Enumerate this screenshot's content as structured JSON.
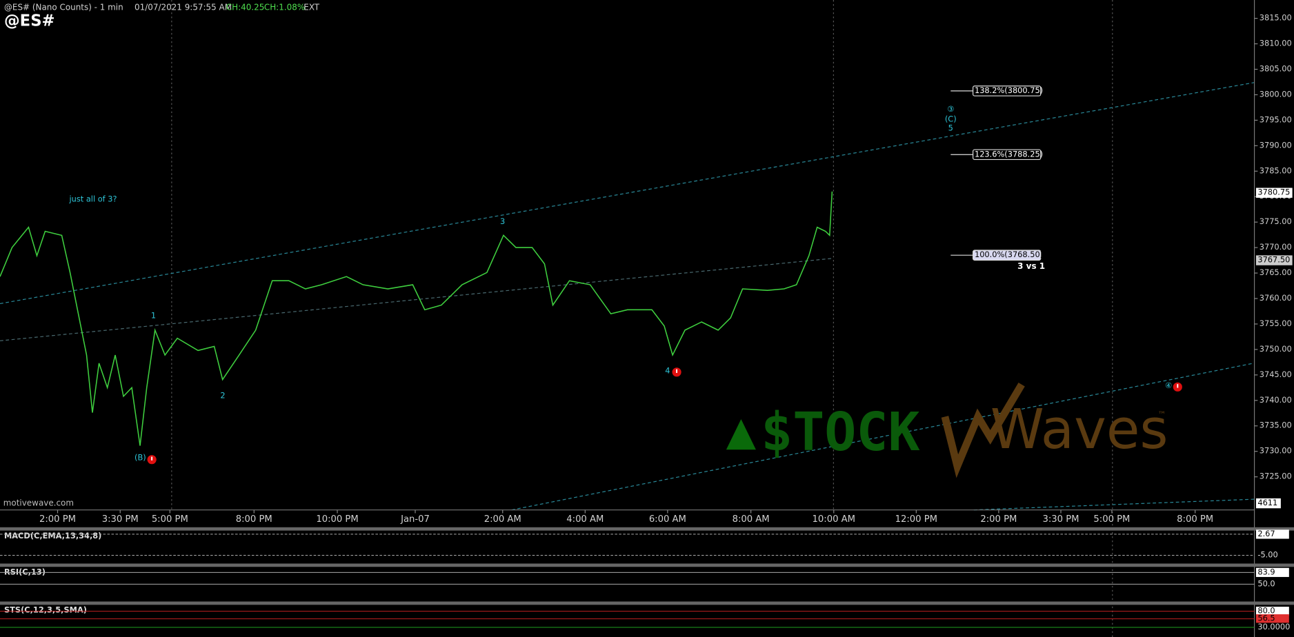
{
  "header": {
    "symbol": "@ES# (Nano Counts) - 1 min",
    "datetime": "01/07/2021 9:57:55 AM",
    "change": "CH:40.25",
    "change_pct": "CH:1.08%",
    "session": "EXT",
    "ticker": "@ES#",
    "site": "motivewave.com",
    "logo_left": "$TOCK",
    "logo_right": "Waves",
    "logo_tm": "™"
  },
  "chart_data": {
    "type": "line",
    "color": "#3fcf3f",
    "x": [
      -1.39,
      -1.1,
      -0.7,
      -0.5,
      -0.3,
      0.1,
      0.3,
      0.5,
      0.7,
      0.84,
      1.0,
      1.2,
      1.39,
      1.59,
      1.79,
      1.99,
      2.15,
      2.35,
      2.59,
      2.89,
      3.39,
      3.78,
      3.98,
      4.38,
      4.78,
      5.18,
      5.58,
      5.98,
      6.37,
      6.97,
      7.37,
      7.97,
      8.57,
      8.86,
      9.26,
      9.76,
      10.36,
      10.76,
      11.06,
      11.45,
      11.75,
      11.95,
      12.35,
      12.85,
      13.35,
      13.75,
      14.34,
      14.64,
      14.84,
      15.14,
      15.54,
      15.94,
      16.24,
      16.53,
      17.13,
      17.53,
      17.83,
      18.13,
      18.33,
      18.53,
      18.63,
      18.69
    ],
    "values": [
      3764.3,
      3770.0,
      3774.0,
      3768.4,
      3773.2,
      3772.4,
      3765.1,
      3757.0,
      3748.9,
      3737.6,
      3747.3,
      3742.5,
      3748.9,
      3740.8,
      3742.5,
      3731.1,
      3742.5,
      3753.8,
      3748.9,
      3752.2,
      3749.8,
      3750.6,
      3744.1,
      3748.9,
      3753.8,
      3763.5,
      3763.5,
      3761.9,
      3762.7,
      3764.3,
      3762.7,
      3761.9,
      3762.7,
      3757.8,
      3758.7,
      3762.7,
      3765.1,
      3772.4,
      3770.0,
      3770.0,
      3766.8,
      3758.7,
      3763.5,
      3762.7,
      3757.0,
      3757.8,
      3757.8,
      3754.6,
      3748.9,
      3753.8,
      3755.4,
      3753.8,
      3756.2,
      3761.9,
      3761.6,
      3761.9,
      3762.7,
      3768.4,
      3774.0,
      3773.2,
      3772.4,
      3781.0
    ],
    "xlim": [
      -1.39,
      28.88
    ],
    "xticks": [
      {
        "value": 0,
        "label": "2:00 PM"
      },
      {
        "value": 1.51,
        "label": "3:30 PM"
      },
      {
        "value": 2.71,
        "label": "5:00 PM"
      },
      {
        "value": 4.74,
        "label": "8:00 PM"
      },
      {
        "value": 6.75,
        "label": "10:00 PM"
      },
      {
        "value": 8.63,
        "label": "Jan-07"
      },
      {
        "value": 10.74,
        "label": "2:00 AM"
      },
      {
        "value": 12.73,
        "label": "4:00 AM"
      },
      {
        "value": 14.72,
        "label": "6:00 AM"
      },
      {
        "value": 16.73,
        "label": "8:00 AM"
      },
      {
        "value": 18.73,
        "label": "10:00 AM"
      },
      {
        "value": 20.72,
        "label": "12:00 PM"
      },
      {
        "value": 22.71,
        "label": "2:00 PM"
      },
      {
        "value": 24.21,
        "label": "3:30 PM"
      },
      {
        "value": 25.44,
        "label": "5:00 PM"
      },
      {
        "value": 27.45,
        "label": "8:00 PM"
      }
    ],
    "ylim": [
      3718.5,
      3818.6
    ],
    "yticks": [
      {
        "value": 3725,
        "label": "3725.00"
      },
      {
        "value": 3730,
        "label": "3730.00"
      },
      {
        "value": 3735,
        "label": "3735.00"
      },
      {
        "value": 3740,
        "label": "3740.00"
      },
      {
        "value": 3745,
        "label": "3745.00"
      },
      {
        "value": 3750,
        "label": "3750.00"
      },
      {
        "value": 3755,
        "label": "3755.00"
      },
      {
        "value": 3760,
        "label": "3760.00"
      },
      {
        "value": 3765,
        "label": "3765.00"
      },
      {
        "value": 3770,
        "label": "3770.00"
      },
      {
        "value": 3775,
        "label": "3775.00"
      },
      {
        "value": 3780,
        "label": "3780.00"
      },
      {
        "value": 3785,
        "label": "3785.00"
      },
      {
        "value": 3790,
        "label": "3790.00"
      },
      {
        "value": 3795,
        "label": "3795.00"
      },
      {
        "value": 3800,
        "label": "3800.00"
      },
      {
        "value": 3805,
        "label": "3805.00"
      },
      {
        "value": 3810,
        "label": "3810.00"
      },
      {
        "value": 3815,
        "label": "3815.00"
      }
    ],
    "price_tags": [
      {
        "value": 3780.75,
        "label": "3780.75"
      },
      {
        "value": 3767.5,
        "label": "3767.50"
      }
    ],
    "volume_label": "4611",
    "fib_levels": [
      {
        "value": 3800.75,
        "label": "138.2%(3800.75)"
      },
      {
        "value": 3788.25,
        "label": "123.6%(3788.25)"
      },
      {
        "value": 3768.5,
        "label": "100.0%(3768.50)"
      }
    ],
    "annotations": [
      "just all of 3?",
      "1",
      "2",
      "3",
      "4",
      "5",
      "(B)",
      "(C)",
      "③",
      "④",
      "3 vs 1"
    ]
  },
  "indicators": [
    {
      "name": "MACD(C,EMA,13,34,8)",
      "ylim": [
        -8,
        4
      ],
      "yticks": [
        2.67,
        {
          "value": -5,
          "label": "-5.00"
        }
      ]
    },
    {
      "name": "RSI(C,13)",
      "ylim": [
        0,
        100
      ],
      "yticks": [
        83.9,
        {
          "value": 50,
          "label": "50.0"
        }
      ]
    },
    {
      "name": "STS(C,12,3,5,SMA)",
      "ylim": [
        0,
        100
      ],
      "yticks": [
        {
          "value": 80,
          "label": "80.0"
        },
        56.5,
        {
          "value": 30,
          "label": "30.0000"
        }
      ]
    }
  ]
}
